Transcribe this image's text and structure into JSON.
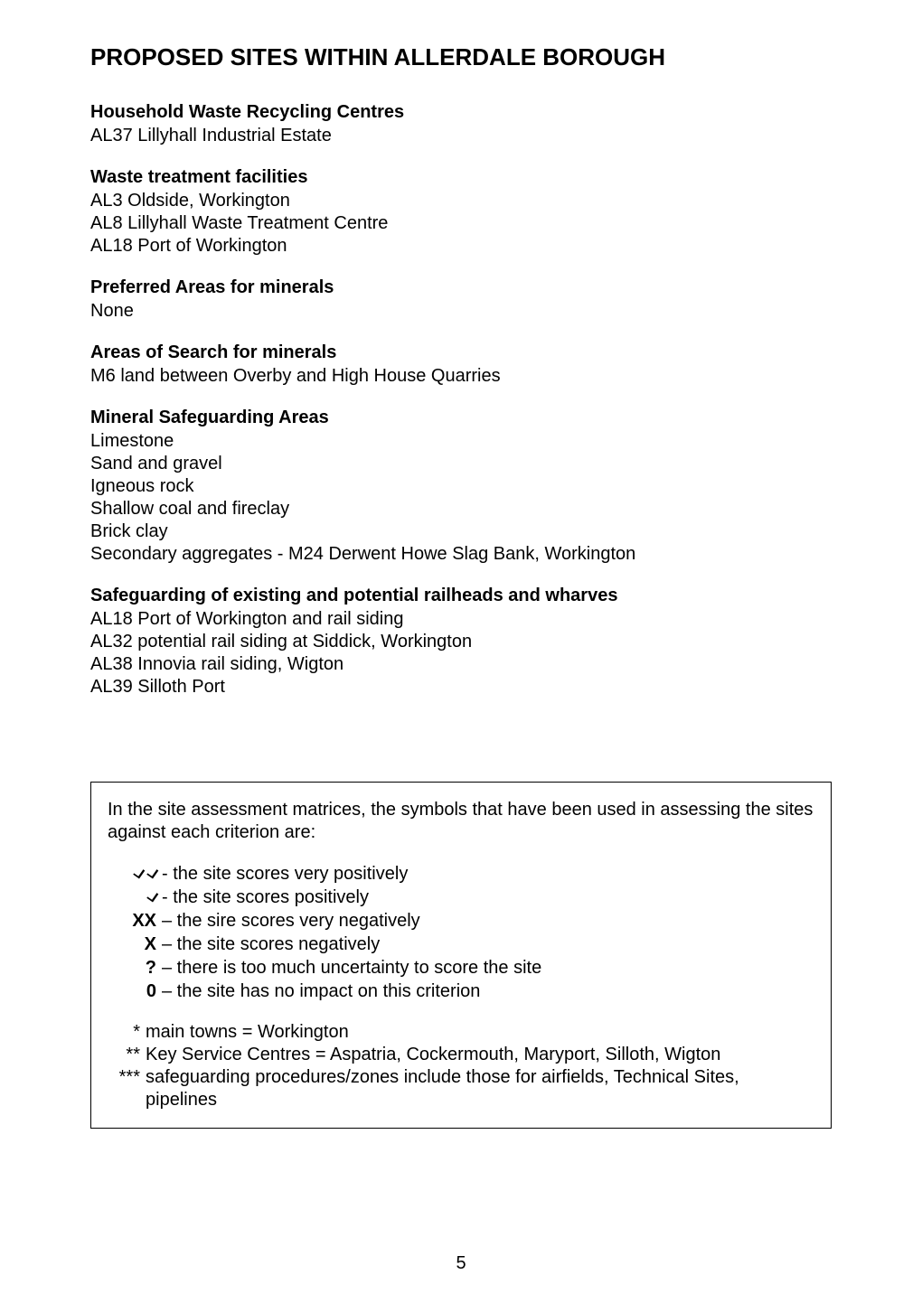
{
  "title": "PROPOSED SITES WITHIN ALLERDALE BOROUGH",
  "sections": {
    "hwrc": {
      "heading": "Household Waste Recycling Centres",
      "items": [
        "AL37  Lillyhall Industrial Estate"
      ]
    },
    "wtf": {
      "heading": "Waste treatment facilities",
      "items": [
        "AL3    Oldside, Workington",
        "AL8    Lillyhall Waste Treatment Centre",
        "AL18  Port of Workington"
      ]
    },
    "preferred": {
      "heading": "Preferred Areas for minerals",
      "items": [
        "None"
      ]
    },
    "search": {
      "heading": "Areas of Search for minerals",
      "items": [
        "M6     land between Overby and High House Quarries"
      ]
    },
    "msa": {
      "heading": "Mineral Safeguarding Areas",
      "items": [
        "Limestone",
        "Sand and gravel",
        "Igneous rock",
        "Shallow coal and fireclay",
        "Brick clay",
        "Secondary aggregates - M24 Derwent Howe Slag Bank, Workington"
      ]
    },
    "safeguard": {
      "heading": "Safeguarding of existing and potential railheads and wharves",
      "items": [
        "AL18  Port of Workington and rail siding",
        "AL32  potential rail siding at Siddick, Workington",
        "AL38  Innovia rail siding, Wigton",
        "AL39  Silloth Port"
      ]
    }
  },
  "assessment": {
    "intro": "In the site assessment matrices, the symbols that have been used in assessing the sites against each criterion are:",
    "symbols": [
      {
        "sym_html": "<span class=\"check-glyph\">L</span> <span class=\"check-glyph\">L</span>",
        "desc": "- the site scores very positively"
      },
      {
        "sym_html": "<span class=\"check-glyph\">L</span>",
        "desc": "- the site scores positively"
      },
      {
        "sym_html": "<b>XX</b>",
        "desc": "– the sire scores very negatively"
      },
      {
        "sym_html": "<b>X</b>",
        "desc": "– the site scores negatively"
      },
      {
        "sym_html": "<b>?</b>",
        "desc": "– there is too much uncertainty to score the site"
      },
      {
        "sym_html": "<b>0</b>",
        "desc": "– the site has no impact on this criterion"
      }
    ],
    "notes": [
      {
        "stars": "*",
        "text": "main towns = Workington"
      },
      {
        "stars": "**",
        "text": "Key Service Centres = Aspatria, Cockermouth, Maryport, Silloth, Wigton"
      },
      {
        "stars": "***",
        "text": "safeguarding procedures/zones include those for airfields, Technical Sites, pipelines"
      }
    ]
  },
  "page_number": "5"
}
